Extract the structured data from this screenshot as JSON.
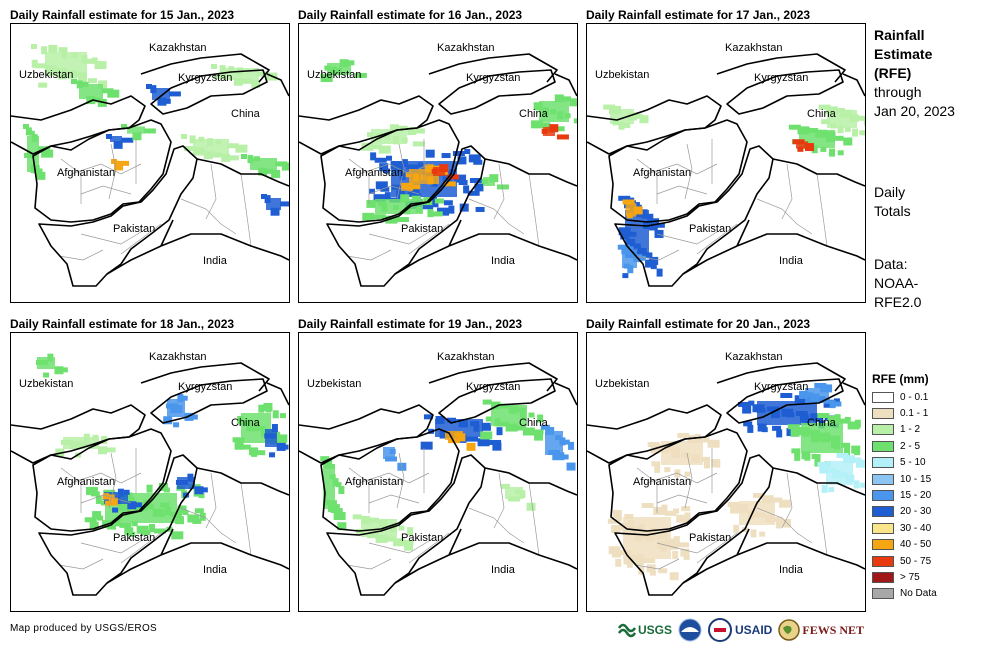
{
  "panels": [
    {
      "title": "Daily Rainfall estimate for 15 Jan., 2023"
    },
    {
      "title": "Daily Rainfall estimate for 16 Jan., 2023"
    },
    {
      "title": "Daily Rainfall estimate for 17 Jan., 2023"
    },
    {
      "title": "Daily Rainfall estimate for 18 Jan., 2023"
    },
    {
      "title": "Daily Rainfall estimate for 19 Jan., 2023"
    },
    {
      "title": "Daily Rainfall estimate for 20 Jan., 2023"
    }
  ],
  "country_labels": {
    "kazakhstan": "Kazakhstan",
    "uzbekistan": "Uzbekistan",
    "kyrgyzstan": "Kyrgyzstan",
    "china": "China",
    "afghanistan": "Afghanistan",
    "pakistan": "Pakistan",
    "india": "India"
  },
  "side": {
    "title_line1": "Rainfall",
    "title_line2": "Estimate",
    "title_line3": "(RFE)",
    "through_line1": "through",
    "through_line2": "Jan 20, 2023",
    "daily_line1": "Daily",
    "daily_line2": "Totals",
    "data_line1": "Data:",
    "data_line2": "NOAA-",
    "data_line3": "RFE2.0"
  },
  "legend": {
    "title": "RFE (mm)",
    "items": [
      {
        "label": "0 - 0.1",
        "color": "#ffffff"
      },
      {
        "label": "0.1 - 1",
        "color": "#eedfc0"
      },
      {
        "label": "1 - 2",
        "color": "#b8f0a8"
      },
      {
        "label": "2 - 5",
        "color": "#6ee06e"
      },
      {
        "label": "5 - 10",
        "color": "#b4f0f8"
      },
      {
        "label": "10 - 15",
        "color": "#8cc4f4"
      },
      {
        "label": "15 - 20",
        "color": "#4a96ec"
      },
      {
        "label": "20 - 30",
        "color": "#1e5ed2"
      },
      {
        "label": "30 - 40",
        "color": "#fae68a"
      },
      {
        "label": "40 - 50",
        "color": "#f6a612"
      },
      {
        "label": "50 - 75",
        "color": "#e83a0e"
      },
      {
        "label": "> 75",
        "color": "#a01818"
      },
      {
        "label": "No Data",
        "color": "#a8a8a8"
      }
    ]
  },
  "credit": "Map produced by USGS/EROS",
  "logos": {
    "usgs": "USGS",
    "usaid": "USAID",
    "fewsnet": "FEWS NET"
  }
}
